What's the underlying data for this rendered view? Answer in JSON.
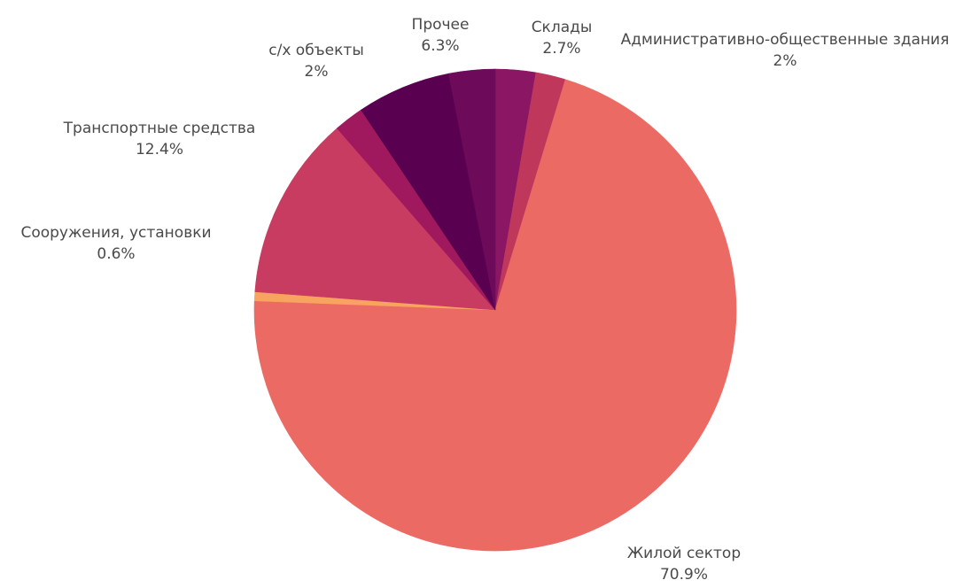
{
  "chart_data": {
    "type": "pie",
    "title": "",
    "start_angle_deg": 0,
    "direction": "clockwise",
    "slices": [
      {
        "label": "Склады",
        "value": 2.7,
        "value_label": "2.7%",
        "color": "#8a1664"
      },
      {
        "label": "Административно-общественные здания",
        "value": 2.0,
        "value_label": "2%",
        "color": "#c0375c"
      },
      {
        "label": "Жилой сектор",
        "value": 70.9,
        "value_label": "70.9%",
        "color": "#ec6a64"
      },
      {
        "label": "Сооружения, установки",
        "value": 0.6,
        "value_label": "0.6%",
        "color": "#f8a35f"
      },
      {
        "label": "Транспортные средства",
        "value": 12.4,
        "value_label": "12.4%",
        "color": "#c83c62"
      },
      {
        "label": "с/х объекты",
        "value": 2.0,
        "value_label": "2%",
        "color": "#a0195f"
      },
      {
        "label": "Прочее",
        "value": 6.3,
        "value_label": "6.3%",
        "color": "#5a0050"
      },
      {
        "label": "",
        "value": 3.1,
        "value_label": "",
        "color": "#6e0a5a"
      }
    ]
  }
}
